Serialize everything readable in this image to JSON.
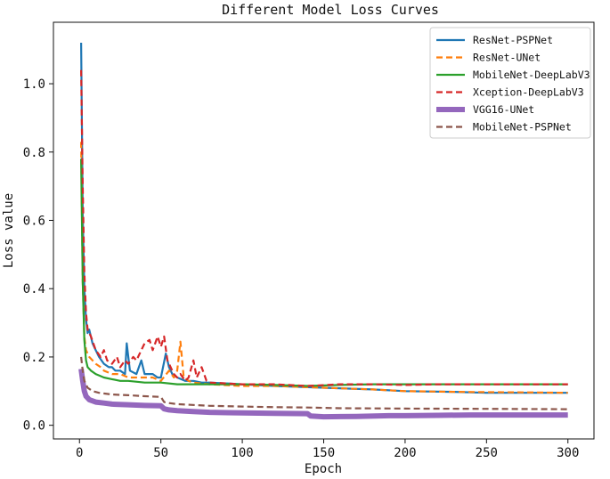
{
  "chart_data": {
    "type": "line",
    "title": "Different Model Loss Curves",
    "xlabel": "Epoch",
    "ylabel": "Loss value",
    "xlim": [
      -16,
      316
    ],
    "ylim": [
      -0.04,
      1.18
    ],
    "xticks": [
      0,
      50,
      100,
      150,
      200,
      250,
      300
    ],
    "yticks": [
      0.0,
      0.2,
      0.4,
      0.6,
      0.8,
      1.0
    ],
    "xtick_labels": [
      "0",
      "50",
      "100",
      "150",
      "200",
      "250",
      "300"
    ],
    "ytick_labels": [
      "0.0",
      "0.2",
      "0.4",
      "0.6",
      "0.8",
      "1.0"
    ],
    "grid": false,
    "legend_position": "top-right",
    "series": [
      {
        "name": "ResNet-PSPNet",
        "color": "#1f77b4",
        "style": "solid",
        "points": [
          [
            1,
            1.12
          ],
          [
            2,
            0.62
          ],
          [
            3,
            0.4
          ],
          [
            4,
            0.31
          ],
          [
            5,
            0.27
          ],
          [
            6,
            0.28
          ],
          [
            8,
            0.24
          ],
          [
            10,
            0.22
          ],
          [
            12,
            0.2
          ],
          [
            15,
            0.18
          ],
          [
            18,
            0.17
          ],
          [
            20,
            0.17
          ],
          [
            22,
            0.16
          ],
          [
            25,
            0.16
          ],
          [
            28,
            0.15
          ],
          [
            29,
            0.24
          ],
          [
            31,
            0.16
          ],
          [
            35,
            0.15
          ],
          [
            38,
            0.19
          ],
          [
            40,
            0.15
          ],
          [
            45,
            0.15
          ],
          [
            48,
            0.14
          ],
          [
            50,
            0.14
          ],
          [
            53,
            0.21
          ],
          [
            55,
            0.17
          ],
          [
            57,
            0.15
          ],
          [
            60,
            0.14
          ],
          [
            65,
            0.13
          ],
          [
            70,
            0.13
          ],
          [
            75,
            0.125
          ],
          [
            80,
            0.125
          ],
          [
            100,
            0.12
          ],
          [
            120,
            0.115
          ],
          [
            150,
            0.11
          ],
          [
            180,
            0.105
          ],
          [
            200,
            0.1
          ],
          [
            230,
            0.098
          ],
          [
            250,
            0.095
          ],
          [
            280,
            0.095
          ],
          [
            300,
            0.095
          ]
        ]
      },
      {
        "name": "ResNet-UNet",
        "color": "#ff7f0e",
        "style": "dashed",
        "points": [
          [
            1,
            0.83
          ],
          [
            2,
            0.42
          ],
          [
            3,
            0.26
          ],
          [
            4,
            0.22
          ],
          [
            6,
            0.2
          ],
          [
            8,
            0.19
          ],
          [
            10,
            0.18
          ],
          [
            13,
            0.17
          ],
          [
            15,
            0.16
          ],
          [
            20,
            0.15
          ],
          [
            25,
            0.15
          ],
          [
            30,
            0.14
          ],
          [
            35,
            0.14
          ],
          [
            40,
            0.14
          ],
          [
            45,
            0.14
          ],
          [
            50,
            0.13
          ],
          [
            55,
            0.16
          ],
          [
            58,
            0.14
          ],
          [
            60,
            0.16
          ],
          [
            62,
            0.245
          ],
          [
            64,
            0.14
          ],
          [
            67,
            0.13
          ],
          [
            70,
            0.125
          ],
          [
            80,
            0.12
          ],
          [
            100,
            0.115
          ],
          [
            120,
            0.115
          ],
          [
            150,
            0.11
          ],
          [
            180,
            0.105
          ],
          [
            200,
            0.1
          ],
          [
            230,
            0.098
          ],
          [
            250,
            0.097
          ],
          [
            280,
            0.096
          ],
          [
            300,
            0.095
          ]
        ]
      },
      {
        "name": "MobileNet-DeepLabV3",
        "color": "#2ca02c",
        "style": "solid",
        "points": [
          [
            1,
            0.78
          ],
          [
            2,
            0.42
          ],
          [
            3,
            0.25
          ],
          [
            4,
            0.19
          ],
          [
            5,
            0.17
          ],
          [
            7,
            0.16
          ],
          [
            10,
            0.15
          ],
          [
            15,
            0.14
          ],
          [
            20,
            0.135
          ],
          [
            25,
            0.13
          ],
          [
            30,
            0.13
          ],
          [
            40,
            0.125
          ],
          [
            50,
            0.125
          ],
          [
            60,
            0.12
          ],
          [
            70,
            0.12
          ],
          [
            80,
            0.12
          ],
          [
            100,
            0.12
          ],
          [
            120,
            0.118
          ],
          [
            140,
            0.115
          ],
          [
            160,
            0.118
          ],
          [
            180,
            0.12
          ],
          [
            200,
            0.12
          ],
          [
            220,
            0.12
          ],
          [
            240,
            0.12
          ],
          [
            260,
            0.12
          ],
          [
            280,
            0.12
          ],
          [
            300,
            0.12
          ]
        ]
      },
      {
        "name": "Xception-DeepLabV3",
        "color": "#d62728",
        "style": "dashed",
        "points": [
          [
            1,
            1.04
          ],
          [
            2,
            0.7
          ],
          [
            3,
            0.45
          ],
          [
            4,
            0.33
          ],
          [
            5,
            0.28
          ],
          [
            7,
            0.26
          ],
          [
            10,
            0.22
          ],
          [
            13,
            0.2
          ],
          [
            15,
            0.22
          ],
          [
            17,
            0.19
          ],
          [
            20,
            0.18
          ],
          [
            23,
            0.2
          ],
          [
            25,
            0.17
          ],
          [
            28,
            0.19
          ],
          [
            30,
            0.18
          ],
          [
            33,
            0.2
          ],
          [
            35,
            0.19
          ],
          [
            38,
            0.22
          ],
          [
            40,
            0.24
          ],
          [
            43,
            0.25
          ],
          [
            45,
            0.22
          ],
          [
            48,
            0.26
          ],
          [
            50,
            0.23
          ],
          [
            52,
            0.26
          ],
          [
            54,
            0.19
          ],
          [
            56,
            0.17
          ],
          [
            58,
            0.15
          ],
          [
            60,
            0.14
          ],
          [
            62,
            0.15
          ],
          [
            65,
            0.13
          ],
          [
            67,
            0.14
          ],
          [
            70,
            0.19
          ],
          [
            72,
            0.14
          ],
          [
            75,
            0.17
          ],
          [
            78,
            0.13
          ],
          [
            80,
            0.125
          ],
          [
            100,
            0.12
          ],
          [
            120,
            0.12
          ],
          [
            140,
            0.115
          ],
          [
            160,
            0.12
          ],
          [
            180,
            0.12
          ],
          [
            200,
            0.118
          ],
          [
            220,
            0.12
          ],
          [
            240,
            0.12
          ],
          [
            260,
            0.12
          ],
          [
            280,
            0.12
          ],
          [
            300,
            0.12
          ]
        ]
      },
      {
        "name": "VGG16-UNet",
        "color": "#9467bd",
        "style": "solid-thick",
        "points": [
          [
            1,
            0.165
          ],
          [
            2,
            0.13
          ],
          [
            3,
            0.1
          ],
          [
            4,
            0.085
          ],
          [
            6,
            0.075
          ],
          [
            10,
            0.068
          ],
          [
            15,
            0.065
          ],
          [
            20,
            0.062
          ],
          [
            30,
            0.06
          ],
          [
            40,
            0.058
          ],
          [
            50,
            0.057
          ],
          [
            52,
            0.048
          ],
          [
            55,
            0.045
          ],
          [
            60,
            0.043
          ],
          [
            70,
            0.04
          ],
          [
            80,
            0.038
          ],
          [
            100,
            0.036
          ],
          [
            120,
            0.035
          ],
          [
            140,
            0.034
          ],
          [
            142,
            0.027
          ],
          [
            150,
            0.025
          ],
          [
            170,
            0.026
          ],
          [
            190,
            0.028
          ],
          [
            200,
            0.028
          ],
          [
            220,
            0.029
          ],
          [
            240,
            0.03
          ],
          [
            260,
            0.03
          ],
          [
            280,
            0.03
          ],
          [
            300,
            0.03
          ]
        ]
      },
      {
        "name": "MobileNet-PSPNet",
        "color": "#8c564b",
        "style": "dashed",
        "points": [
          [
            1,
            0.2
          ],
          [
            2,
            0.16
          ],
          [
            3,
            0.13
          ],
          [
            5,
            0.11
          ],
          [
            8,
            0.1
          ],
          [
            12,
            0.095
          ],
          [
            20,
            0.09
          ],
          [
            30,
            0.088
          ],
          [
            40,
            0.085
          ],
          [
            50,
            0.083
          ],
          [
            52,
            0.068
          ],
          [
            55,
            0.065
          ],
          [
            60,
            0.062
          ],
          [
            80,
            0.057
          ],
          [
            100,
            0.055
          ],
          [
            120,
            0.053
          ],
          [
            140,
            0.052
          ],
          [
            160,
            0.05
          ],
          [
            200,
            0.049
          ],
          [
            250,
            0.048
          ],
          [
            300,
            0.047
          ]
        ]
      }
    ]
  }
}
